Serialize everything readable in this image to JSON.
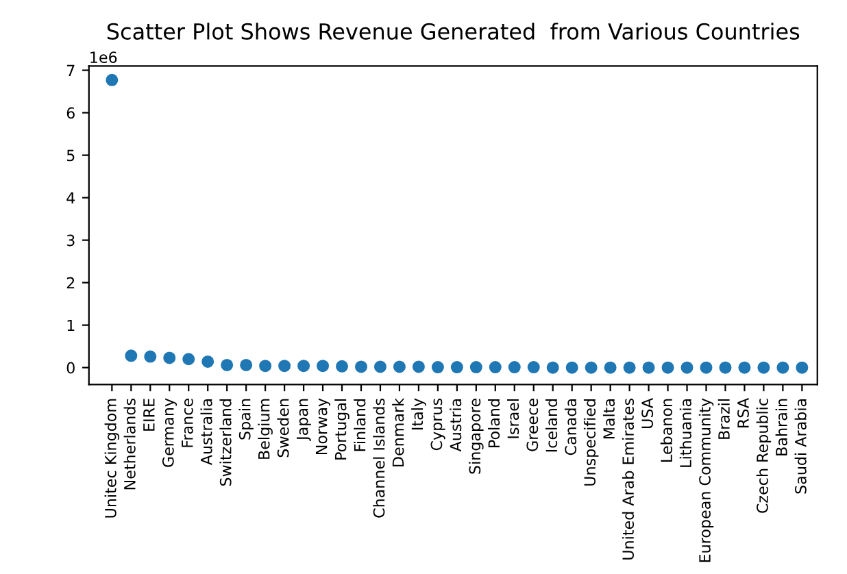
{
  "chart_data": {
    "type": "scatter",
    "title": "Scatter Plot Shows Revenue Generated  from Various Countries",
    "categories": [
      "Unitec Kingdom",
      "Netherlands",
      "EIRE",
      "Germany",
      "France",
      "Australia",
      "Switzerland",
      "Spain",
      "Belgium",
      "Sweden",
      "Japan",
      "Norway",
      "Portugal",
      "Finland",
      "Channel Islands",
      "Denmark",
      "Italy",
      "Cyprus",
      "Austria",
      "Singapore",
      "Poland",
      "Israel",
      "Greece",
      "Iceland",
      "Canada",
      "Unspecified",
      "Malta",
      "United Arab Emirates",
      "USA",
      "Lebanon",
      "Lithuania",
      "European Community",
      "Brazil",
      "RSA",
      "Czech Republic",
      "Bahrain",
      "Saudi Arabia"
    ],
    "values": [
      6.77,
      0.28,
      0.26,
      0.23,
      0.2,
      0.14,
      0.06,
      0.06,
      0.04,
      0.04,
      0.04,
      0.04,
      0.03,
      0.02,
      0.02,
      0.02,
      0.02,
      0.01,
      0.01,
      0.01,
      0.01,
      0.01,
      0.01,
      0.0,
      0.0,
      0.0,
      0.0,
      0.0,
      0.0,
      0.0,
      0.0,
      0.0,
      0.0,
      0.0,
      0.0,
      0.0,
      0.0
    ],
    "color": "#1f77b4",
    "marker": "circle",
    "ylim": [
      -0.4,
      7.1
    ],
    "yticks": [
      0,
      1,
      2,
      3,
      4,
      5,
      6,
      7
    ],
    "annotations": [
      "1e6"
    ],
    "grid": false,
    "legend": false
  }
}
